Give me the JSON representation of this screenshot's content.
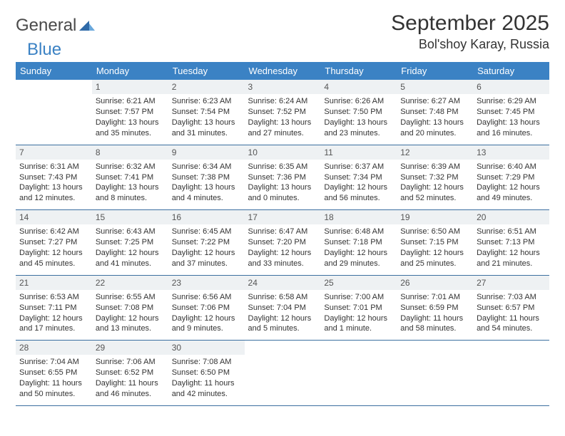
{
  "logo": {
    "text1": "General",
    "text2": "Blue"
  },
  "title": "September 2025",
  "location": "Bol'shoy Karay, Russia",
  "style": {
    "header_bg": "#3b82c4",
    "header_text": "#ffffff",
    "daynum_bg": "#eef1f3",
    "row_border": "#3b6fa0",
    "body_font_size": 11,
    "title_font_size": 30,
    "location_font_size": 18,
    "column_count": 7,
    "row_count": 5
  },
  "days": [
    "Sunday",
    "Monday",
    "Tuesday",
    "Wednesday",
    "Thursday",
    "Friday",
    "Saturday"
  ],
  "weeks": [
    [
      {
        "n": "",
        "sr": "",
        "ss": "",
        "dl": ""
      },
      {
        "n": "1",
        "sr": "Sunrise: 6:21 AM",
        "ss": "Sunset: 7:57 PM",
        "dl": "Daylight: 13 hours and 35 minutes."
      },
      {
        "n": "2",
        "sr": "Sunrise: 6:23 AM",
        "ss": "Sunset: 7:54 PM",
        "dl": "Daylight: 13 hours and 31 minutes."
      },
      {
        "n": "3",
        "sr": "Sunrise: 6:24 AM",
        "ss": "Sunset: 7:52 PM",
        "dl": "Daylight: 13 hours and 27 minutes."
      },
      {
        "n": "4",
        "sr": "Sunrise: 6:26 AM",
        "ss": "Sunset: 7:50 PM",
        "dl": "Daylight: 13 hours and 23 minutes."
      },
      {
        "n": "5",
        "sr": "Sunrise: 6:27 AM",
        "ss": "Sunset: 7:48 PM",
        "dl": "Daylight: 13 hours and 20 minutes."
      },
      {
        "n": "6",
        "sr": "Sunrise: 6:29 AM",
        "ss": "Sunset: 7:45 PM",
        "dl": "Daylight: 13 hours and 16 minutes."
      }
    ],
    [
      {
        "n": "7",
        "sr": "Sunrise: 6:31 AM",
        "ss": "Sunset: 7:43 PM",
        "dl": "Daylight: 13 hours and 12 minutes."
      },
      {
        "n": "8",
        "sr": "Sunrise: 6:32 AM",
        "ss": "Sunset: 7:41 PM",
        "dl": "Daylight: 13 hours and 8 minutes."
      },
      {
        "n": "9",
        "sr": "Sunrise: 6:34 AM",
        "ss": "Sunset: 7:38 PM",
        "dl": "Daylight: 13 hours and 4 minutes."
      },
      {
        "n": "10",
        "sr": "Sunrise: 6:35 AM",
        "ss": "Sunset: 7:36 PM",
        "dl": "Daylight: 13 hours and 0 minutes."
      },
      {
        "n": "11",
        "sr": "Sunrise: 6:37 AM",
        "ss": "Sunset: 7:34 PM",
        "dl": "Daylight: 12 hours and 56 minutes."
      },
      {
        "n": "12",
        "sr": "Sunrise: 6:39 AM",
        "ss": "Sunset: 7:32 PM",
        "dl": "Daylight: 12 hours and 52 minutes."
      },
      {
        "n": "13",
        "sr": "Sunrise: 6:40 AM",
        "ss": "Sunset: 7:29 PM",
        "dl": "Daylight: 12 hours and 49 minutes."
      }
    ],
    [
      {
        "n": "14",
        "sr": "Sunrise: 6:42 AM",
        "ss": "Sunset: 7:27 PM",
        "dl": "Daylight: 12 hours and 45 minutes."
      },
      {
        "n": "15",
        "sr": "Sunrise: 6:43 AM",
        "ss": "Sunset: 7:25 PM",
        "dl": "Daylight: 12 hours and 41 minutes."
      },
      {
        "n": "16",
        "sr": "Sunrise: 6:45 AM",
        "ss": "Sunset: 7:22 PM",
        "dl": "Daylight: 12 hours and 37 minutes."
      },
      {
        "n": "17",
        "sr": "Sunrise: 6:47 AM",
        "ss": "Sunset: 7:20 PM",
        "dl": "Daylight: 12 hours and 33 minutes."
      },
      {
        "n": "18",
        "sr": "Sunrise: 6:48 AM",
        "ss": "Sunset: 7:18 PM",
        "dl": "Daylight: 12 hours and 29 minutes."
      },
      {
        "n": "19",
        "sr": "Sunrise: 6:50 AM",
        "ss": "Sunset: 7:15 PM",
        "dl": "Daylight: 12 hours and 25 minutes."
      },
      {
        "n": "20",
        "sr": "Sunrise: 6:51 AM",
        "ss": "Sunset: 7:13 PM",
        "dl": "Daylight: 12 hours and 21 minutes."
      }
    ],
    [
      {
        "n": "21",
        "sr": "Sunrise: 6:53 AM",
        "ss": "Sunset: 7:11 PM",
        "dl": "Daylight: 12 hours and 17 minutes."
      },
      {
        "n": "22",
        "sr": "Sunrise: 6:55 AM",
        "ss": "Sunset: 7:08 PM",
        "dl": "Daylight: 12 hours and 13 minutes."
      },
      {
        "n": "23",
        "sr": "Sunrise: 6:56 AM",
        "ss": "Sunset: 7:06 PM",
        "dl": "Daylight: 12 hours and 9 minutes."
      },
      {
        "n": "24",
        "sr": "Sunrise: 6:58 AM",
        "ss": "Sunset: 7:04 PM",
        "dl": "Daylight: 12 hours and 5 minutes."
      },
      {
        "n": "25",
        "sr": "Sunrise: 7:00 AM",
        "ss": "Sunset: 7:01 PM",
        "dl": "Daylight: 12 hours and 1 minute."
      },
      {
        "n": "26",
        "sr": "Sunrise: 7:01 AM",
        "ss": "Sunset: 6:59 PM",
        "dl": "Daylight: 11 hours and 58 minutes."
      },
      {
        "n": "27",
        "sr": "Sunrise: 7:03 AM",
        "ss": "Sunset: 6:57 PM",
        "dl": "Daylight: 11 hours and 54 minutes."
      }
    ],
    [
      {
        "n": "28",
        "sr": "Sunrise: 7:04 AM",
        "ss": "Sunset: 6:55 PM",
        "dl": "Daylight: 11 hours and 50 minutes."
      },
      {
        "n": "29",
        "sr": "Sunrise: 7:06 AM",
        "ss": "Sunset: 6:52 PM",
        "dl": "Daylight: 11 hours and 46 minutes."
      },
      {
        "n": "30",
        "sr": "Sunrise: 7:08 AM",
        "ss": "Sunset: 6:50 PM",
        "dl": "Daylight: 11 hours and 42 minutes."
      },
      {
        "n": "",
        "sr": "",
        "ss": "",
        "dl": ""
      },
      {
        "n": "",
        "sr": "",
        "ss": "",
        "dl": ""
      },
      {
        "n": "",
        "sr": "",
        "ss": "",
        "dl": ""
      },
      {
        "n": "",
        "sr": "",
        "ss": "",
        "dl": ""
      }
    ]
  ]
}
